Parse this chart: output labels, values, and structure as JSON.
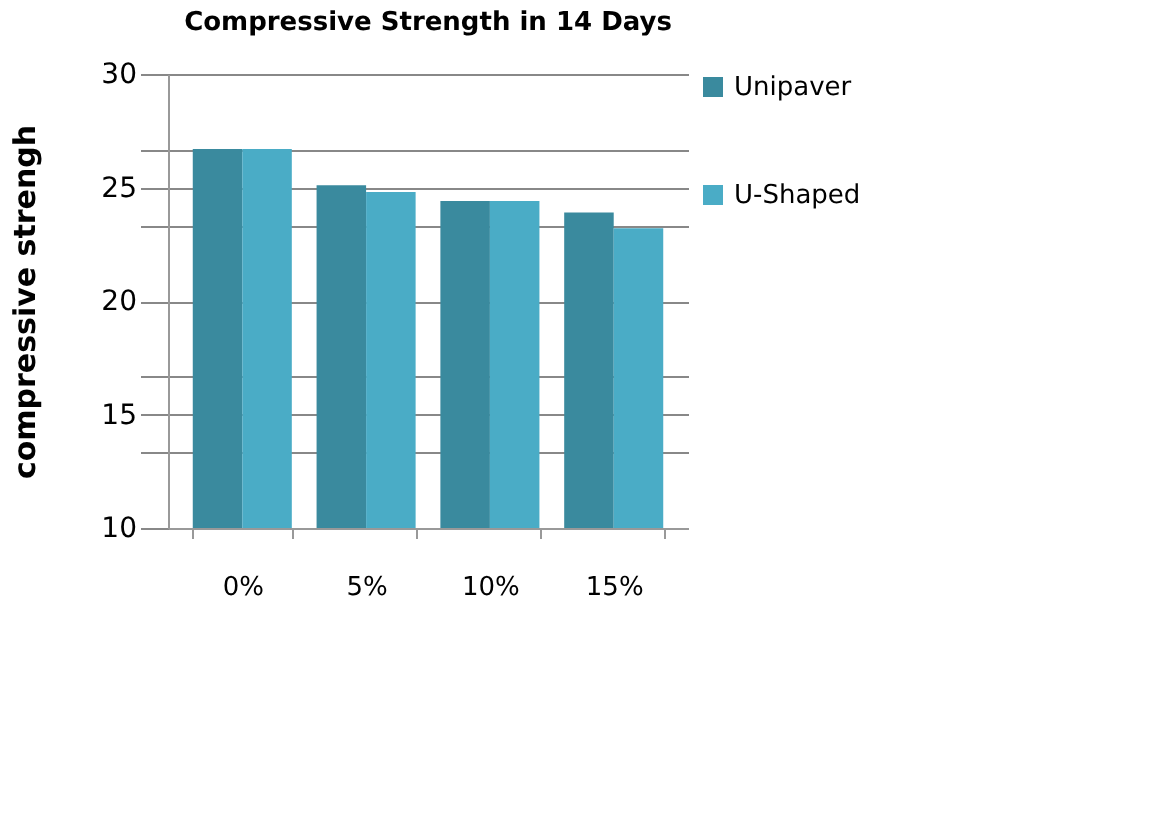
{
  "chart_data": {
    "type": "bar",
    "title": "Compressive Strength in 14 Days",
    "ylabel": "compressive strengh",
    "categories": [
      "0%",
      "5%",
      "10%",
      "15%"
    ],
    "series": [
      {
        "name": "Unipaver",
        "color": "#3a8a9e",
        "values": [
          26.7,
          25.1,
          24.4,
          23.9
        ]
      },
      {
        "name": "U-Shaped",
        "color": "#4aacc6",
        "values": [
          26.7,
          24.8,
          24.4,
          23.2
        ]
      }
    ],
    "ylim": [
      10,
      30
    ],
    "yticks": [
      10,
      {
        "value": 13.33,
        "label": null
      },
      15,
      {
        "value": 16.67,
        "label": null
      },
      20,
      {
        "value": 23.33,
        "label": null
      },
      25,
      {
        "value": 26.67,
        "label": null
      },
      30
    ],
    "grid": "y",
    "legend": "right"
  }
}
